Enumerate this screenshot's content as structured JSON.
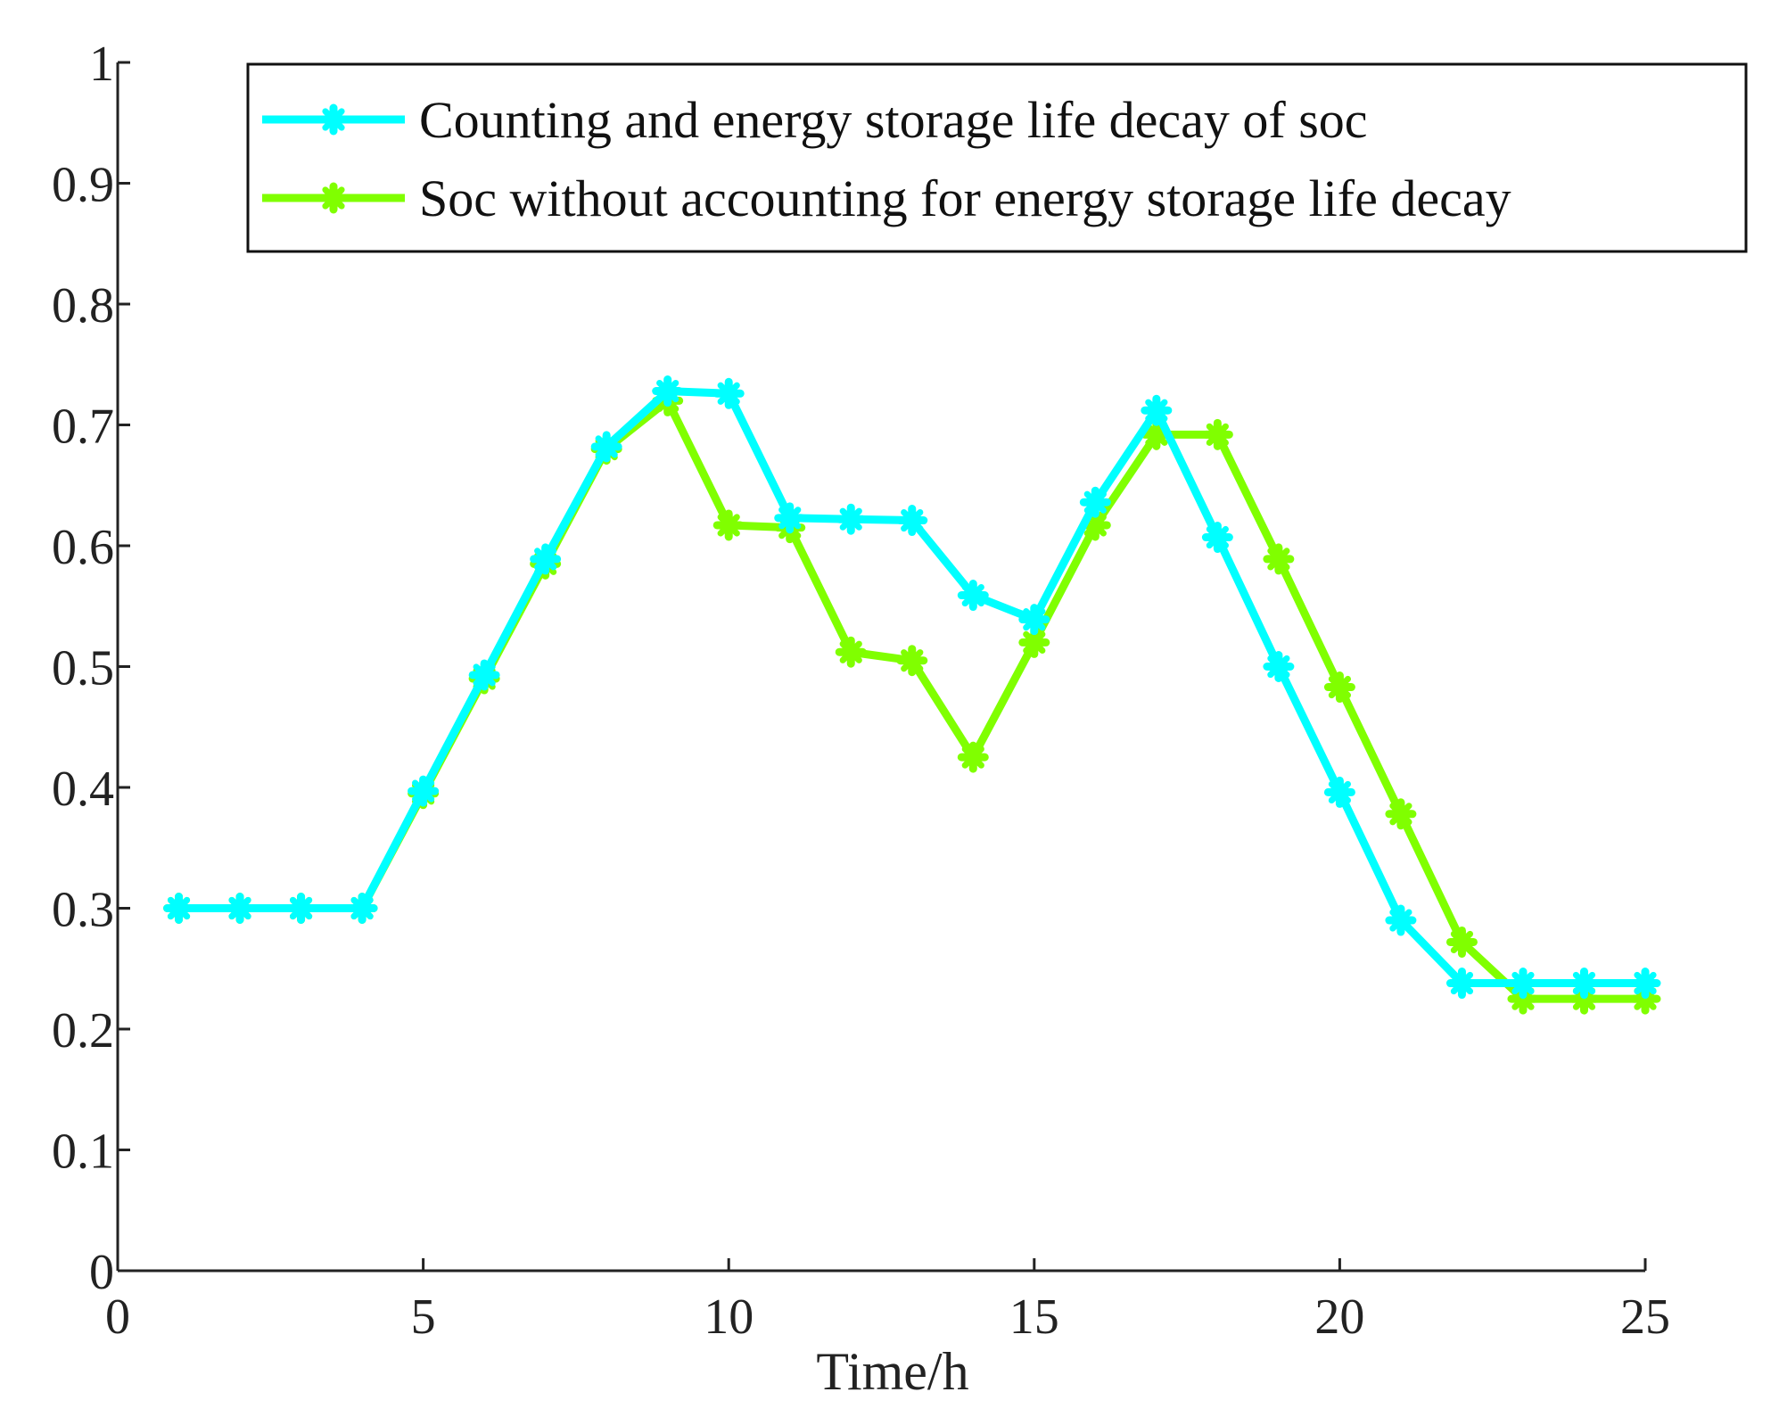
{
  "chart_data": {
    "type": "line",
    "title": "",
    "xlabel": "Time/h",
    "ylabel": "",
    "xlim": [
      0,
      25
    ],
    "ylim": [
      0,
      1
    ],
    "xticks": [
      0,
      5,
      10,
      15,
      20,
      25
    ],
    "xtick_labels": [
      "0",
      "5",
      "10",
      "15",
      "20",
      "25"
    ],
    "yticks": [
      0,
      0.1,
      0.2,
      0.3,
      0.4,
      0.5,
      0.6,
      0.7,
      0.8,
      0.9,
      1
    ],
    "ytick_labels": [
      "0",
      "0.1",
      "0.2",
      "0.3",
      "0.4",
      "0.5",
      "0.6",
      "0.7",
      "0.8",
      "0.9",
      "1"
    ],
    "grid": false,
    "legend_position": "top-right",
    "x": [
      1,
      2,
      3,
      4,
      5,
      6,
      7,
      8,
      9,
      10,
      11,
      12,
      13,
      14,
      15,
      16,
      17,
      18,
      19,
      20,
      21,
      22,
      23,
      24,
      25
    ],
    "series": [
      {
        "name": "Soc without accounting for energy storage life decay",
        "color": "#80ff00",
        "marker": "plus-star",
        "values": [
          0.3,
          0.3,
          0.3,
          0.3,
          0.395,
          0.49,
          0.585,
          0.68,
          0.72,
          0.617,
          0.615,
          0.512,
          0.505,
          0.425,
          0.52,
          0.617,
          0.692,
          0.692,
          0.589,
          0.483,
          0.378,
          0.272,
          0.225,
          0.225,
          0.225
        ]
      },
      {
        "name": "Counting and energy storage life decay of soc",
        "color": "#00ffff",
        "marker": "plus-star",
        "values": [
          0.3,
          0.3,
          0.3,
          0.3,
          0.397,
          0.493,
          0.589,
          0.682,
          0.728,
          0.726,
          0.623,
          0.622,
          0.621,
          0.559,
          0.539,
          0.636,
          0.712,
          0.607,
          0.5,
          0.396,
          0.29,
          0.238,
          0.238,
          0.238,
          0.238
        ]
      }
    ],
    "legend_order": [
      1,
      0
    ]
  }
}
